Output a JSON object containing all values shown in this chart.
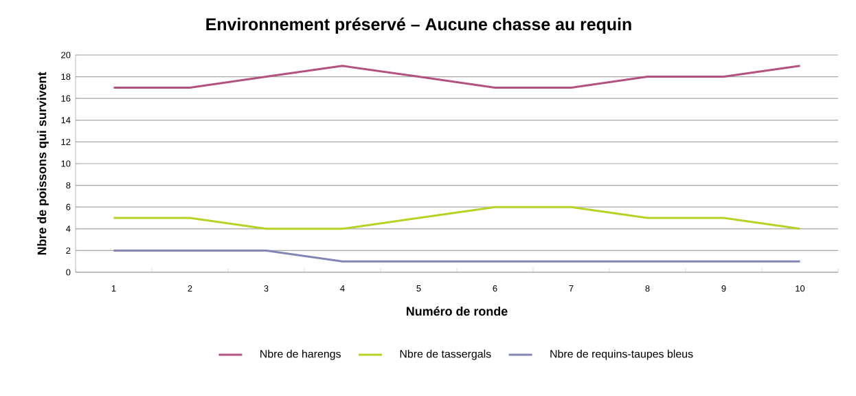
{
  "chart_data": {
    "type": "line",
    "title": "Environnement préservé – Aucune chasse au requin",
    "xlabel": "Numéro de ronde",
    "ylabel": "Nbre de poissons qui survivent",
    "categories": [
      "1",
      "2",
      "3",
      "4",
      "5",
      "6",
      "7",
      "8",
      "9",
      "10"
    ],
    "series": [
      {
        "name": "Nbre de harengs",
        "color": "#b3517f",
        "values": [
          17,
          17,
          18,
          19,
          18,
          17,
          17,
          18,
          18,
          19
        ]
      },
      {
        "name": "Nbre de tassergals",
        "color": "#b5d325",
        "values": [
          5,
          5,
          4,
          4,
          5,
          6,
          6,
          5,
          5,
          4
        ]
      },
      {
        "name": "Nbre de requins-taupes bleus",
        "color": "#8585b5",
        "values": [
          2,
          2,
          2,
          1,
          1,
          1,
          1,
          1,
          1,
          1
        ]
      }
    ],
    "ylim": [
      0,
      20
    ],
    "yticks": [
      0,
      2,
      4,
      6,
      8,
      10,
      12,
      14,
      16,
      18,
      20
    ],
    "grid": "y",
    "legend": "bottom"
  }
}
